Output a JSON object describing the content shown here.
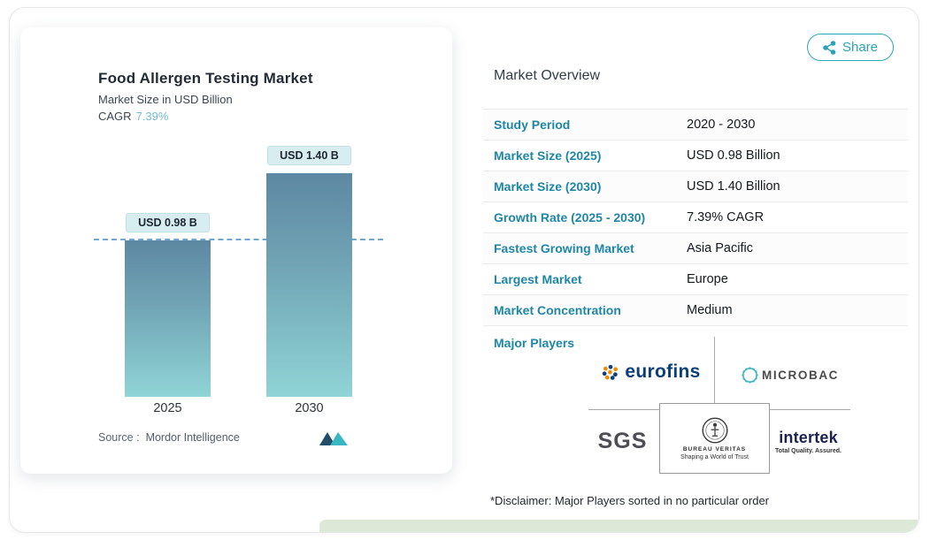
{
  "share": {
    "label": "Share"
  },
  "chart_card": {
    "title": "Food Allergen Testing Market",
    "subtitle": "Market Size in USD Billion",
    "cagr_label": "CAGR",
    "cagr_value": "7.39%",
    "source_label": "Source :",
    "source_value": "Mordor Intelligence"
  },
  "chart_data": {
    "type": "bar",
    "title": "Food Allergen Testing Market",
    "ylabel": "Market Size in USD Billion",
    "unit": "USD Billion",
    "categories": [
      "2025",
      "2030"
    ],
    "values": [
      0.98,
      1.4
    ],
    "bar_labels": [
      "USD 0.98 B",
      "USD 1.40 B"
    ],
    "cagr": "7.39%",
    "reference_line": 0.98,
    "ylim": [
      0,
      1.4
    ],
    "grid": false,
    "legend": "none"
  },
  "overview": {
    "title": "Market Overview",
    "rows": [
      {
        "label": "Study Period",
        "value": "2020 - 2030"
      },
      {
        "label": "Market Size (2025)",
        "value": "USD 0.98 Billion"
      },
      {
        "label": "Market Size (2030)",
        "value": "USD 1.40 Billion"
      },
      {
        "label": "Growth Rate (2025 - 2030)",
        "value": "7.39% CAGR"
      },
      {
        "label": "Fastest Growing Market",
        "value": "Asia Pacific"
      },
      {
        "label": "Largest Market",
        "value": "Europe"
      },
      {
        "label": "Market Concentration",
        "value": "Medium"
      }
    ],
    "major_players_label": "Major Players",
    "players": [
      {
        "name": "eurofins"
      },
      {
        "name": "MICROBAC"
      },
      {
        "name": "SGS"
      },
      {
        "name": "BUREAU VERITAS",
        "tagline": "Shaping a World of Trust"
      },
      {
        "name": "intertek",
        "tagline": "Total Quality. Assured."
      }
    ],
    "disclaimer": "*Disclaimer: Major Players sorted in no particular order"
  },
  "colors": {
    "accent": "#2BA4B5",
    "row_label": "#1E86A7",
    "bar_gradient_top": "#5D88A3",
    "bar_gradient_bottom": "#90D4D7",
    "value_chip_bg": "#D8EDEF",
    "reference_line": "#6EA7D2",
    "footer_strip": "#DDE9D6"
  }
}
